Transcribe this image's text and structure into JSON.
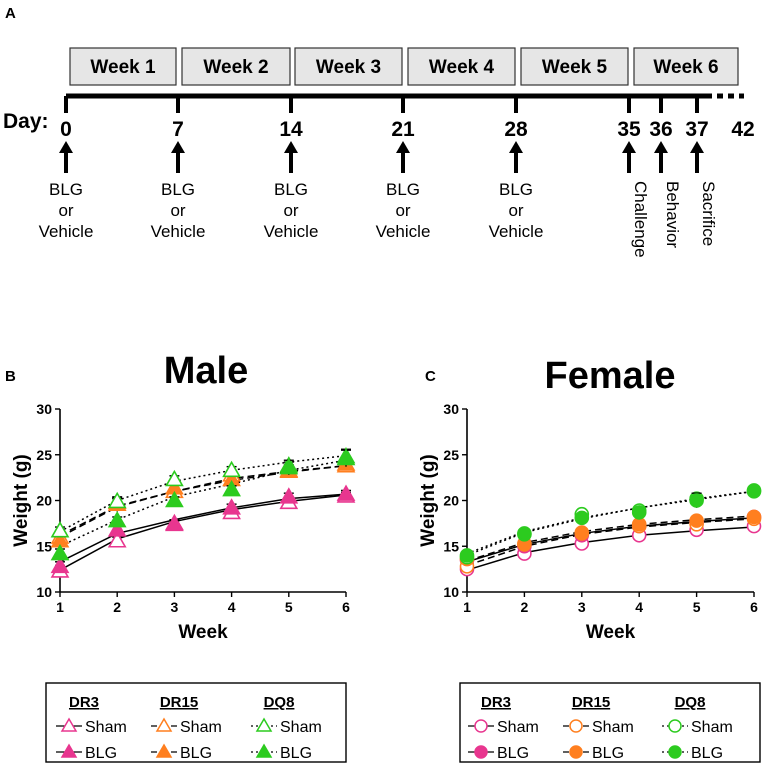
{
  "colors": {
    "DR3": "#e8368f",
    "DR15": "#ff7f1f",
    "DQ8": "#2ccb1f",
    "black": "#000000",
    "box_fill": "#e6e6e6"
  },
  "timeline": {
    "panel_label": "A",
    "day_label": "Day:",
    "weeks": [
      "Week 1",
      "Week 2",
      "Week 3",
      "Week 4",
      "Week 5",
      "Week 6"
    ],
    "days": [
      "0",
      "7",
      "14",
      "21",
      "28",
      "35",
      "36",
      "37",
      "42"
    ],
    "events": [
      {
        "lines": [
          "BLG",
          "or",
          "Vehicle"
        ]
      },
      {
        "lines": [
          "BLG",
          "or",
          "Vehicle"
        ]
      },
      {
        "lines": [
          "BLG",
          "or",
          "Vehicle"
        ]
      },
      {
        "lines": [
          "BLG",
          "or",
          "Vehicle"
        ]
      },
      {
        "lines": [
          "BLG",
          "or",
          "Vehicle"
        ]
      },
      {
        "label": "Challenge"
      },
      {
        "label": "Behavior"
      },
      {
        "label": "Sacrifice"
      }
    ]
  },
  "chart_data": [
    {
      "panel_label": "B",
      "type": "line",
      "title": "Male",
      "xlabel": "Week",
      "ylabel": "Weight (g)",
      "x": [
        1,
        2,
        3,
        4,
        5,
        6
      ],
      "xticks": [
        "1",
        "2",
        "3",
        "4",
        "5",
        "6"
      ],
      "ylim": [
        10,
        30
      ],
      "yticks": [
        "10",
        "15",
        "20",
        "25",
        "30"
      ],
      "marker": "triangle",
      "series": [
        {
          "name": "DR3 Sham",
          "group": "DR3",
          "condition": "Sham",
          "values": [
            12.3,
            15.6,
            17.5,
            18.7,
            19.8,
            20.5
          ],
          "fit": [
            12.4,
            15.8,
            17.7,
            19.0,
            19.9,
            20.6
          ],
          "err": [
            0.6,
            0.4,
            0.4,
            0.4,
            0.4,
            0.4
          ]
        },
        {
          "name": "DR3 BLG",
          "group": "DR3",
          "condition": "BLG",
          "values": [
            12.8,
            16.8,
            17.4,
            19.2,
            20.4,
            20.7
          ],
          "fit": [
            13.3,
            16.4,
            17.9,
            19.2,
            20.2,
            20.7
          ],
          "err": [
            0.5,
            0.4,
            0.4,
            0.4,
            0.4,
            0.4
          ]
        },
        {
          "name": "DR15 Sham",
          "group": "DR15",
          "condition": "Sham",
          "values": [
            16.0,
            19.8,
            21.0,
            22.8,
            23.2,
            23.8
          ],
          "fit": [
            16.2,
            19.4,
            21.0,
            22.4,
            23.2,
            23.8
          ],
          "err": [
            0.5,
            0.4,
            0.4,
            0.4,
            0.4,
            0.4
          ]
        },
        {
          "name": "DR15 BLG",
          "group": "DR15",
          "condition": "BLG",
          "values": [
            15.6,
            19.6,
            21.4,
            22.3,
            23.3,
            24.0
          ],
          "fit": [
            16.0,
            19.3,
            21.0,
            22.2,
            23.1,
            23.8
          ],
          "err": [
            0.6,
            0.8,
            0.6,
            0.5,
            0.6,
            0.6
          ]
        },
        {
          "name": "DQ8 Sham",
          "group": "DQ8",
          "condition": "Sham",
          "values": [
            16.7,
            19.9,
            22.3,
            23.3,
            23.8,
            24.8
          ],
          "fit": [
            16.6,
            20.0,
            22.1,
            23.3,
            24.2,
            24.9
          ],
          "err": [
            0.4,
            0.4,
            0.4,
            0.4,
            0.4,
            0.8
          ]
        },
        {
          "name": "DQ8 BLG",
          "group": "DQ8",
          "condition": "BLG",
          "values": [
            14.2,
            17.8,
            20.0,
            21.2,
            23.6,
            24.6
          ],
          "fit": [
            15.0,
            17.9,
            20.4,
            21.8,
            23.3,
            24.4
          ],
          "err": [
            0.5,
            0.4,
            0.4,
            0.4,
            0.8,
            0.9
          ]
        }
      ]
    },
    {
      "panel_label": "C",
      "type": "line",
      "title": "Female",
      "xlabel": "Week",
      "ylabel": "Weight (g)",
      "x": [
        1,
        2,
        3,
        4,
        5,
        6
      ],
      "xticks": [
        "1",
        "2",
        "3",
        "4",
        "5",
        "6"
      ],
      "ylim": [
        10,
        30
      ],
      "yticks": [
        "10",
        "15",
        "20",
        "25",
        "30"
      ],
      "marker": "circle",
      "series": [
        {
          "name": "DR3 Sham",
          "group": "DR3",
          "condition": "Sham",
          "values": [
            12.5,
            14.2,
            15.3,
            16.2,
            16.8,
            17.2
          ],
          "fit": [
            12.4,
            14.3,
            15.4,
            16.2,
            16.7,
            17.1
          ],
          "err": [
            0.3,
            0.3,
            0.3,
            0.3,
            0.3,
            0.3
          ]
        },
        {
          "name": "DR3 BLG",
          "group": "DR3",
          "condition": "BLG",
          "values": [
            13.5,
            15.0,
            16.2,
            17.2,
            17.6,
            18.2
          ],
          "fit": [
            13.3,
            15.2,
            16.4,
            17.2,
            17.7,
            18.1
          ],
          "err": [
            0.3,
            0.3,
            0.3,
            0.3,
            0.3,
            0.3
          ]
        },
        {
          "name": "DR15 Sham",
          "group": "DR15",
          "condition": "Sham",
          "values": [
            12.8,
            15.2,
            16.4,
            17.2,
            17.4,
            18.0
          ],
          "fit": [
            12.9,
            15.0,
            16.3,
            17.1,
            17.6,
            18.0
          ],
          "err": [
            0.3,
            0.3,
            0.3,
            0.3,
            0.3,
            0.3
          ]
        },
        {
          "name": "DR15 BLG",
          "group": "DR15",
          "condition": "BLG",
          "values": [
            13.6,
            15.3,
            16.5,
            17.4,
            17.8,
            18.2
          ],
          "fit": [
            13.4,
            15.4,
            16.6,
            17.4,
            17.9,
            18.3
          ],
          "err": [
            0.3,
            0.3,
            0.3,
            0.3,
            0.3,
            0.3
          ]
        },
        {
          "name": "DQ8 Sham",
          "group": "DQ8",
          "condition": "Sham",
          "values": [
            13.8,
            16.3,
            18.5,
            18.9,
            20.2,
            21.0
          ],
          "fit": [
            14.0,
            16.5,
            18.0,
            19.2,
            20.2,
            21.0
          ],
          "err": [
            0.3,
            0.3,
            0.3,
            0.3,
            0.3,
            0.3
          ]
        },
        {
          "name": "DQ8 BLG",
          "group": "DQ8",
          "condition": "BLG",
          "values": [
            14.0,
            16.4,
            18.1,
            18.7,
            20.0,
            21.1
          ],
          "fit": [
            14.2,
            16.6,
            18.1,
            19.2,
            20.1,
            21.0
          ],
          "err": [
            0.3,
            0.3,
            0.3,
            0.3,
            0.8,
            0.4
          ]
        }
      ]
    }
  ],
  "legend": {
    "headers": [
      "DR3",
      "DR15",
      "DQ8"
    ],
    "labels": [
      "Sham",
      "BLG"
    ]
  }
}
